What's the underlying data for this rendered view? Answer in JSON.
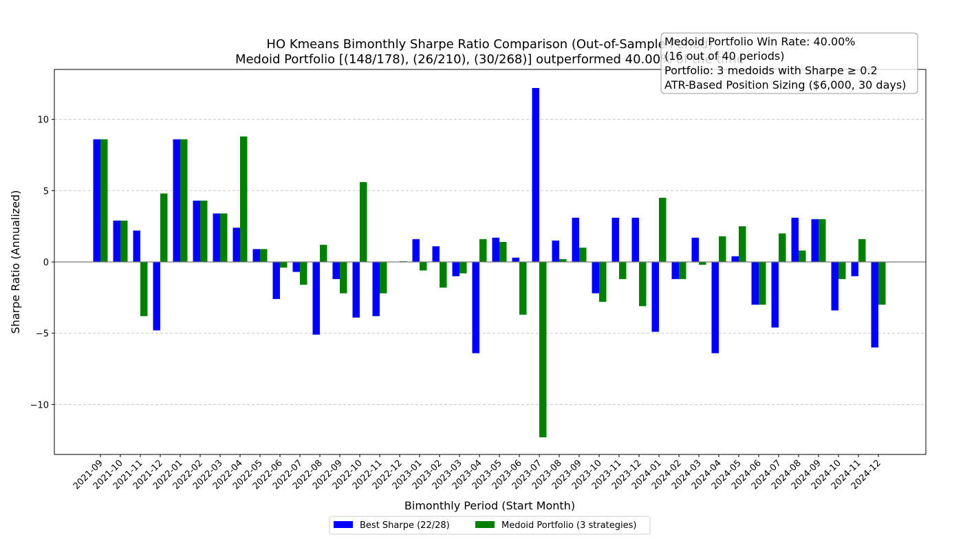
{
  "chart_data": {
    "type": "bar",
    "title": "HO Kmeans Bimonthly Sharpe Ratio Comparison (Out-of-Sample Period)",
    "subtitle": "Medoid Portfolio [(148/178), (26/210), (30/268)] outperformed 40.00% of the time",
    "xlabel": "Bimonthly Period (Start Month)",
    "ylabel": "Sharpe Ratio (Annualized)",
    "ylim": [
      -13.5,
      13.5
    ],
    "yticks": [
      -10,
      -5,
      0,
      5,
      10
    ],
    "ytick_labels": [
      "−10",
      "−5",
      "0",
      "5",
      "10"
    ],
    "grid": "y-dashed",
    "legend_position": "bottom-center",
    "categories": [
      "2021-09",
      "2021-10",
      "2021-11",
      "2021-12",
      "2022-01",
      "2022-02",
      "2022-03",
      "2022-04",
      "2022-05",
      "2022-06",
      "2022-07",
      "2022-08",
      "2022-09",
      "2022-10",
      "2022-11",
      "2022-12",
      "2023-01",
      "2023-02",
      "2023-03",
      "2023-04",
      "2023-05",
      "2023-06",
      "2023-07",
      "2023-08",
      "2023-09",
      "2023-10",
      "2023-11",
      "2023-12",
      "2024-01",
      "2024-02",
      "2024-03",
      "2024-04",
      "2024-05",
      "2024-06",
      "2024-07",
      "2024-08",
      "2024-09",
      "2024-10",
      "2024-11",
      "2024-12"
    ],
    "series": [
      {
        "name": "Best Sharpe (22/28)",
        "color": "#0000ff",
        "values": [
          8.6,
          2.9,
          2.2,
          -4.8,
          8.6,
          4.3,
          3.4,
          2.4,
          0.9,
          -2.6,
          -0.7,
          -5.1,
          -1.2,
          -3.9,
          -3.8,
          0.0,
          1.6,
          1.1,
          -1.0,
          -6.4,
          1.7,
          0.3,
          12.2,
          1.5,
          3.1,
          -2.2,
          3.1,
          3.1,
          -4.9,
          -1.2,
          1.7,
          -6.4,
          0.4,
          -3.0,
          -4.6,
          3.1,
          3.0,
          -3.4,
          -1.0,
          -6.0
        ]
      },
      {
        "name": "Medoid Portfolio (3 strategies)",
        "color": "#008000",
        "values": [
          8.6,
          2.9,
          -3.8,
          4.8,
          8.6,
          4.3,
          3.4,
          8.8,
          0.9,
          -0.4,
          -1.6,
          1.2,
          -2.2,
          5.6,
          -2.2,
          0.05,
          -0.6,
          -1.8,
          -0.8,
          1.6,
          1.4,
          -3.7,
          -12.3,
          0.2,
          1.0,
          -2.8,
          -1.2,
          -3.1,
          4.5,
          -1.2,
          -0.2,
          1.8,
          2.5,
          -3.0,
          2.0,
          0.8,
          3.0,
          -1.2,
          1.6,
          -3.0
        ]
      }
    ],
    "annotation": [
      "Medoid Portfolio Win Rate: 40.00%",
      "(16 out of 40 periods)",
      "Portfolio: 3 medoids with Sharpe ≥ 0.2",
      "ATR-Based Position Sizing ($6,000, 30 days)"
    ]
  }
}
